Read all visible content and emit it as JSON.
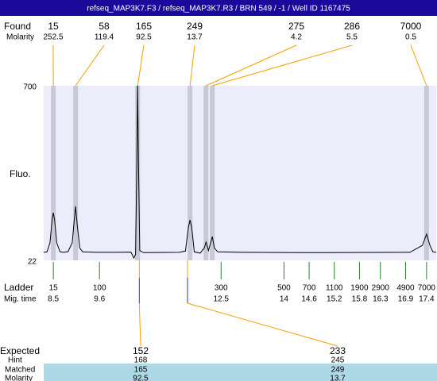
{
  "chart_data": {
    "type": "electropherogram",
    "title": "refseq_MAP3K7.F3 / refseq_MAP3K7.R3 / BRN 549 / -1 / Well ID 1167475",
    "ylabel": "Fluo.",
    "ylim": [
      22,
      700
    ],
    "yticks": [
      22,
      700
    ],
    "xlim": [
      8.27,
      17.63
    ],
    "found": {
      "label": "Found",
      "molarity_label": "Molarity",
      "color": "#f5a000",
      "sizes": [
        15,
        58,
        165,
        249,
        275,
        286,
        7000
      ],
      "molarity": [
        252.5,
        119.4,
        92.5,
        13.7,
        4.2,
        5.5,
        0.5
      ],
      "times": [
        8.5,
        9.03,
        10.51,
        11.76,
        12.14,
        12.29,
        17.4
      ]
    },
    "ladder": {
      "label": "Ladder",
      "time_label": "Mig. time",
      "color": "#2e7d32",
      "sizes": [
        15,
        100,
        300,
        500,
        700,
        1100,
        1900,
        2900,
        4900,
        7000
      ],
      "times": [
        8.5,
        9.6,
        12.5,
        14,
        14.6,
        15.2,
        15.8,
        16.3,
        16.9,
        17.4
      ]
    },
    "expected": {
      "label": "Expected",
      "hint_label": "Hint",
      "matched_label": "Matched",
      "molarity_label": "Molarity",
      "sizes": [
        152,
        233
      ],
      "hint": [
        168,
        245
      ],
      "matched": [
        165,
        249
      ],
      "molarity": [
        92.5,
        13.7
      ],
      "times": [
        10.55,
        11.7
      ],
      "color": "#3333cc"
    },
    "trace": {
      "color": "#000000",
      "x": [
        8.27,
        8.35,
        8.42,
        8.47,
        8.5,
        8.53,
        8.58,
        8.66,
        8.75,
        8.85,
        8.95,
        9.0,
        9.03,
        9.07,
        9.13,
        9.2,
        9.5,
        10.0,
        10.35,
        10.42,
        10.46,
        10.49,
        10.51,
        10.53,
        10.56,
        10.65,
        11.5,
        11.65,
        11.72,
        11.76,
        11.8,
        11.86,
        12.0,
        12.1,
        12.14,
        12.2,
        12.25,
        12.29,
        12.34,
        12.42,
        13.0,
        15.0,
        17.0,
        17.3,
        17.4,
        17.48,
        17.55,
        17.63
      ],
      "values": [
        53,
        55,
        90,
        180,
        207,
        180,
        90,
        55,
        53,
        56,
        90,
        180,
        232,
        160,
        70,
        55,
        53,
        53,
        54,
        31,
        45,
        400,
        700,
        400,
        60,
        52,
        53,
        58,
        150,
        179,
        150,
        55,
        50,
        70,
        93,
        60,
        90,
        114,
        70,
        55,
        53,
        52,
        53,
        80,
        124,
        80,
        55,
        53
      ]
    }
  }
}
